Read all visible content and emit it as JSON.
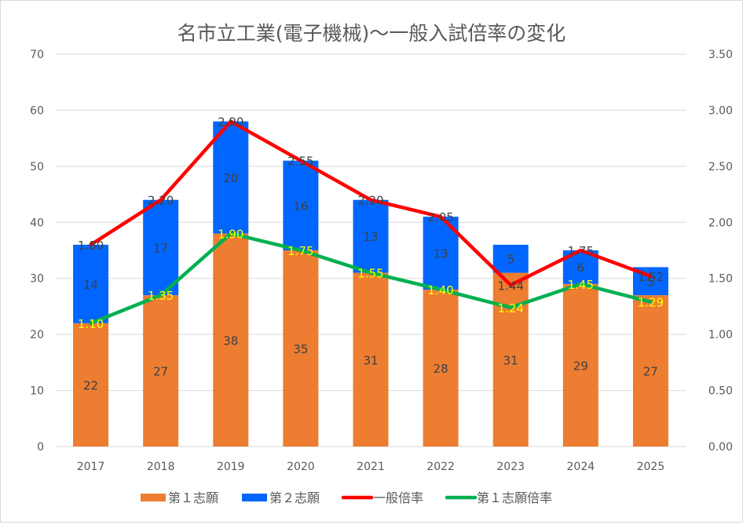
{
  "chart_data": {
    "type": "bar",
    "subtype": "stacked-bar-with-lines",
    "title": "名市立工業(電子機械)〜一般入試倍率の変化",
    "categories": [
      "2017",
      "2018",
      "2019",
      "2020",
      "2021",
      "2022",
      "2023",
      "2024",
      "2025"
    ],
    "series": [
      {
        "name": "第１志願",
        "kind": "bar",
        "axis": "left",
        "color": "#ED7D31",
        "label_color": "#404040",
        "values": [
          22,
          27,
          38,
          35,
          31,
          28,
          31,
          29,
          27
        ]
      },
      {
        "name": "第２志願",
        "kind": "bar",
        "axis": "left",
        "color": "#0066FF",
        "label_color": "#404040",
        "values": [
          14,
          17,
          20,
          16,
          13,
          13,
          5,
          6,
          5
        ]
      },
      {
        "name": "一般倍率",
        "kind": "line",
        "axis": "right",
        "color": "#FF0000",
        "label_color": "#404040",
        "values": [
          1.8,
          2.2,
          2.9,
          2.55,
          2.2,
          2.05,
          1.44,
          1.75,
          1.52
        ],
        "labels": [
          "1.80",
          "2.20",
          "2.90",
          "2.55",
          "2.20",
          "2.05",
          "1.44",
          "1.75",
          "1.52"
        ]
      },
      {
        "name": "第１志願倍率",
        "kind": "line",
        "axis": "right",
        "color": "#00B050",
        "label_color": "#FFFF00",
        "values": [
          1.1,
          1.35,
          1.9,
          1.75,
          1.55,
          1.4,
          1.24,
          1.45,
          1.29
        ],
        "labels": [
          "1.10",
          "1.35",
          "1.90",
          "1.75",
          "1.55",
          "1.40",
          "1.24",
          "1.45",
          "1.29"
        ]
      }
    ],
    "y_left": {
      "min": 0,
      "max": 70,
      "step": 10,
      "ticks": [
        "0",
        "10",
        "20",
        "30",
        "40",
        "50",
        "60",
        "70"
      ]
    },
    "y_right": {
      "min": 0,
      "max": 3.5,
      "step": 0.5,
      "ticks": [
        "0.00",
        "0.50",
        "1.00",
        "1.50",
        "2.00",
        "2.50",
        "3.00",
        "3.50"
      ]
    },
    "xlabel": "",
    "ylabel": "",
    "grid": true,
    "legend_position": "bottom"
  }
}
